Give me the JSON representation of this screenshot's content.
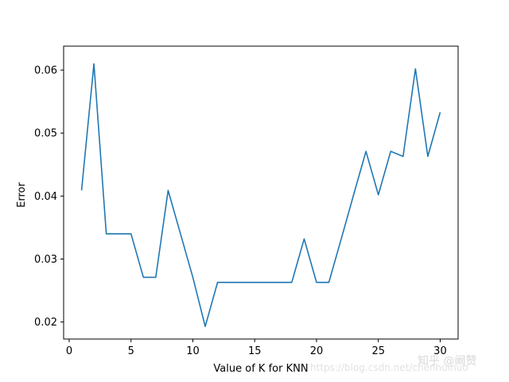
{
  "chart_data": {
    "type": "line",
    "title": "",
    "xlabel": "Value of K for KNN",
    "ylabel": "Error",
    "xlim": [
      -0.45,
      31.45
    ],
    "ylim": [
      0.0173,
      0.0638
    ],
    "xticks": [
      0,
      5,
      10,
      15,
      20,
      25,
      30
    ],
    "xtick_labels": [
      "0",
      "5",
      "10",
      "15",
      "20",
      "25",
      "30"
    ],
    "yticks": [
      0.02,
      0.03,
      0.04,
      0.05,
      0.06
    ],
    "ytick_labels": [
      "0.02",
      "0.03",
      "0.04",
      "0.05",
      "0.06"
    ],
    "grid": false,
    "legend": "none",
    "series": [
      {
        "color": "#1f77b4",
        "x": [
          1,
          2,
          3,
          4,
          5,
          6,
          7,
          8,
          9,
          10,
          11,
          12,
          13,
          14,
          15,
          16,
          17,
          18,
          19,
          20,
          21,
          22,
          23,
          24,
          25,
          26,
          27,
          28,
          29,
          30
        ],
        "y": [
          0.0409,
          0.061,
          0.034,
          0.034,
          0.034,
          0.0271,
          0.0271,
          0.0409,
          0.034,
          0.0271,
          0.0193,
          0.0263,
          0.0263,
          0.0263,
          0.0263,
          0.0263,
          0.0263,
          0.0263,
          0.0332,
          0.0263,
          0.0263,
          0.0332,
          0.0402,
          0.0471,
          0.0402,
          0.0471,
          0.0463,
          0.0602,
          0.0463,
          0.0533
        ]
      }
    ]
  },
  "watermark": {
    "text": "知乎 @阚赞",
    "url_text": "https://blog.csdn.net/chenhuihuo"
  },
  "colors": {
    "line": "#1f77b4",
    "axes": "#000000",
    "background": "#ffffff"
  }
}
